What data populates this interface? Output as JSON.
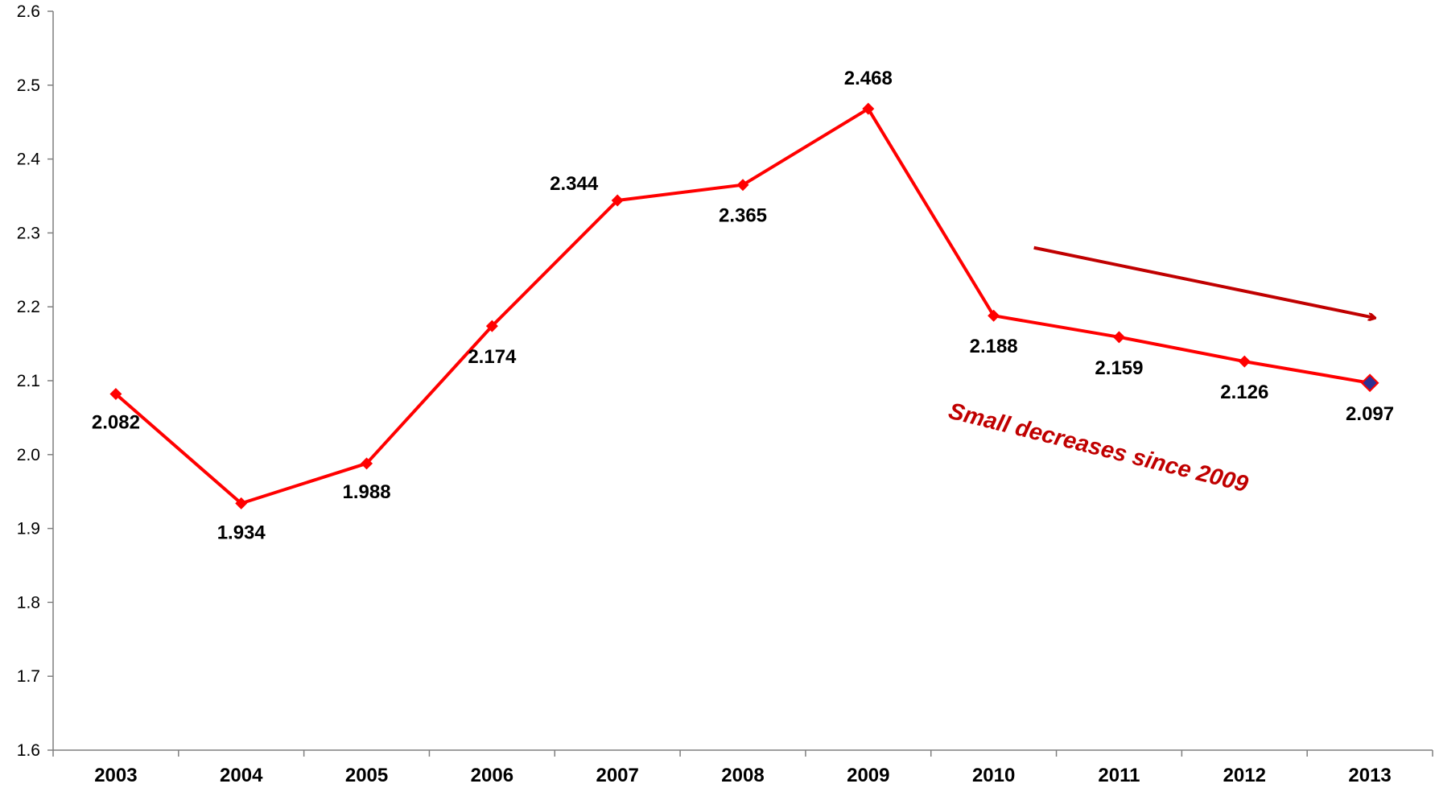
{
  "chart_data": {
    "type": "line",
    "title": "",
    "xlabel": "",
    "ylabel": "",
    "categories": [
      "2003",
      "2004",
      "2005",
      "2006",
      "2007",
      "2008",
      "2009",
      "2010",
      "2011",
      "2012",
      "2013"
    ],
    "series": [
      {
        "values": [
          2.082,
          1.934,
          1.988,
          2.174,
          2.344,
          2.365,
          2.468,
          2.188,
          2.159,
          2.126,
          2.097
        ],
        "data_labels": [
          "2.082",
          "1.934",
          "1.988",
          "2.174",
          "2.344",
          "2.365",
          "2.468",
          "2.188",
          "2.159",
          "2.126",
          "2.097"
        ],
        "color": "#ff0000",
        "highlight_last_point_color": "#2e3192"
      }
    ],
    "ylim": [
      1.6,
      2.6
    ],
    "yticks": [
      "1.6",
      "1.7",
      "1.8",
      "1.9",
      "2.0",
      "2.1",
      "2.2",
      "2.3",
      "2.4",
      "2.5",
      "2.6"
    ],
    "grid": false,
    "legend": "none",
    "annotation": {
      "text": "Small decreases since 2009",
      "color": "#c00000",
      "arrow_color": "#c00000",
      "arrow_from": {
        "x": "2010",
        "y": 2.28
      },
      "arrow_to": {
        "x": "2013",
        "y": 2.185
      }
    }
  }
}
